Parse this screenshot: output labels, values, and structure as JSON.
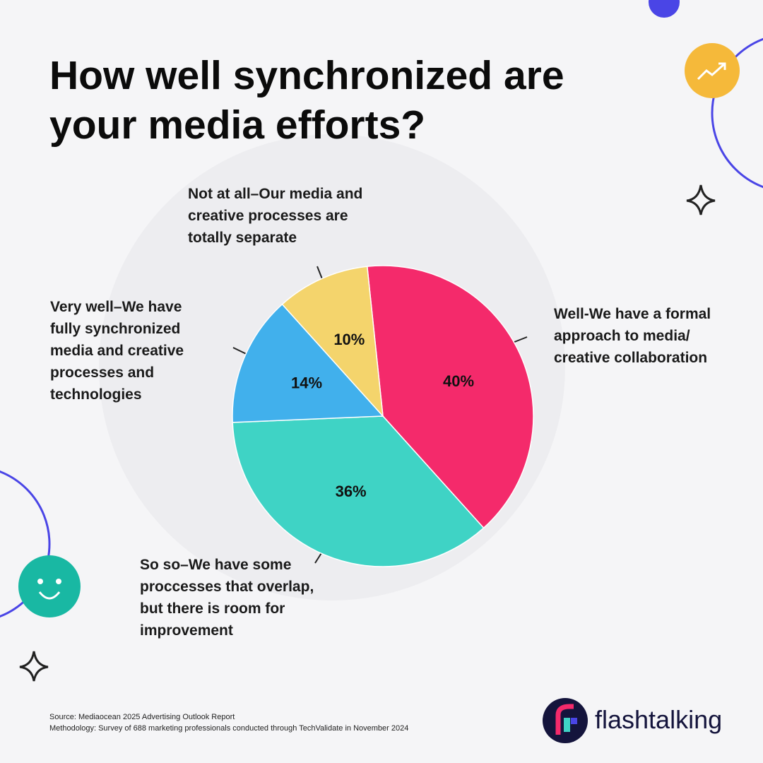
{
  "chart_data": {
    "type": "pie",
    "title": "How well synchronized are your media efforts?",
    "categories": [
      "Well-We have a formal approach to media/ creative collaboration",
      "So so–We have some proccesses that overlap, but there is room for improvement",
      "Very well–We have fully synchronized media and creative processes and technologies",
      "Not at all–Our media and creative processes are totally separate"
    ],
    "values": [
      40,
      36,
      14,
      10
    ],
    "value_labels": [
      "40%",
      "36%",
      "14%",
      "10%"
    ],
    "colors": [
      "#f42a6b",
      "#3fd3c5",
      "#41b0ec",
      "#f4d46c"
    ],
    "source": "Source: Mediaocean 2025 Advertising Outlook Report",
    "methodology": "Methodology: Survey of 688 marketing professionals conducted through TechValidate in November 2024"
  },
  "brand": "flashtalking"
}
